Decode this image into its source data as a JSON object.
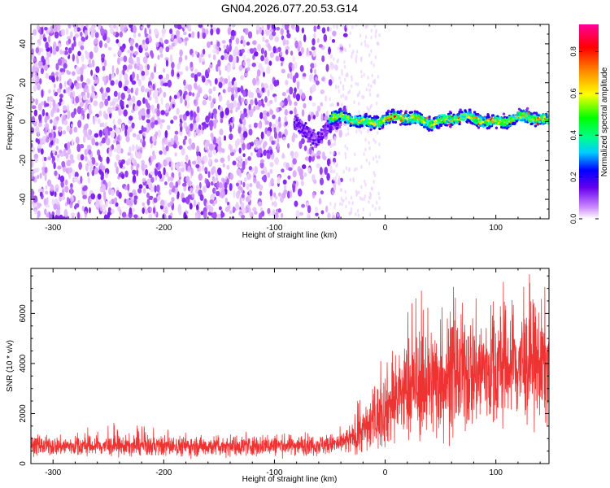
{
  "title": "GN04.2026.077.20.53.G14",
  "chart_data": [
    {
      "type": "heatmap",
      "xlabel": "Height of straight line (km)",
      "ylabel": "Frequency (Hz)",
      "xlim": [
        -320,
        148
      ],
      "ylim": [
        -50,
        50
      ],
      "x_ticks": [
        -300,
        -200,
        -100,
        0,
        100
      ],
      "y_ticks": [
        -40,
        -20,
        0,
        20,
        40
      ],
      "colorbar": {
        "label": "Normalized spectral amplitude",
        "range": [
          0.0,
          0.93
        ],
        "ticks": [
          0.0,
          0.2,
          0.4,
          0.6,
          0.8
        ],
        "colors": [
          "#ffffff",
          "#cc88ff",
          "#6600ee",
          "#0000ff",
          "#00ffff",
          "#00ff00",
          "#ffff00",
          "#ff6600",
          "#ff0000",
          "#ff0099"
        ]
      },
      "regions": [
        {
          "name": "noise",
          "x_range": [
            -320,
            -60
          ],
          "freq_range": [
            -50,
            50
          ],
          "amplitude": 0.05
        },
        {
          "name": "signal-transition",
          "x_range": [
            -82,
            -40
          ],
          "freq_points": [
            [
              -82,
              0
            ],
            [
              -70,
              -6
            ],
            [
              -62,
              -10
            ],
            [
              -55,
              -5
            ],
            [
              -45,
              0
            ]
          ],
          "amplitude": 0.2
        },
        {
          "name": "signal-tone",
          "x_range": [
            -50,
            148
          ],
          "freq_center": 1,
          "freq_halfwidth": 4,
          "amplitude": 0.45,
          "peak_amplitude": 0.85
        }
      ]
    },
    {
      "type": "line",
      "xlabel": "Height of straight line (km)",
      "ylabel": "SNR (10 * v/v)",
      "xlim": [
        -320,
        148
      ],
      "ylim": [
        0,
        7800
      ],
      "x_ticks": [
        -300,
        -200,
        -100,
        0,
        100
      ],
      "y_ticks": [
        0,
        2000,
        4000,
        6000
      ],
      "color": "#ee3333",
      "envelope": {
        "x": [
          -320,
          -250,
          -150,
          -60,
          -40,
          -30,
          -15,
          0,
          20,
          50,
          80,
          110,
          148
        ],
        "mean": [
          700,
          700,
          700,
          750,
          800,
          1000,
          1500,
          2200,
          3000,
          3400,
          3700,
          3900,
          4000
        ],
        "spread": [
          350,
          380,
          380,
          380,
          400,
          600,
          1000,
          1500,
          2000,
          2300,
          2300,
          2300,
          2300
        ],
        "max": [
          1200,
          1650,
          1300,
          1350,
          1500,
          2300,
          3600,
          4300,
          6400,
          7700,
          7700,
          7700,
          7500
        ]
      }
    }
  ]
}
